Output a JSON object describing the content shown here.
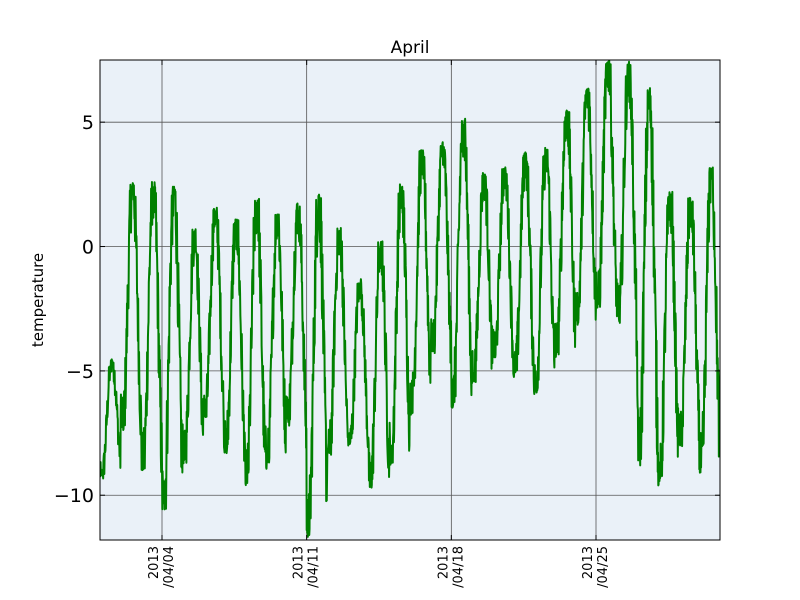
{
  "chart_data": {
    "type": "line",
    "title": "April",
    "xlabel": "",
    "ylabel": "temperature",
    "x_range": [
      "2013-04-01",
      "2013-05-01"
    ],
    "ylim": [
      -11.8,
      7.5
    ],
    "y_ticks": [
      5,
      0,
      -5,
      -10
    ],
    "y_tick_labels": [
      "5",
      "0",
      "−5",
      "−10"
    ],
    "x_ticks": [
      {
        "date": "2013-04-04",
        "line1": "2013",
        "line2": "/04/04"
      },
      {
        "date": "2013-04-11",
        "line1": "2013",
        "line2": "/04/11"
      },
      {
        "date": "2013-04-18",
        "line1": "2013",
        "line2": "/04/18"
      },
      {
        "date": "2013-04-25",
        "line1": "2013",
        "line2": "/04/25"
      }
    ],
    "grid": true,
    "background": "#eaf1f8",
    "series": [
      {
        "color": "#008000",
        "daily": [
          {
            "date": "2013-04-01",
            "min": -9.5,
            "max": -4.5
          },
          {
            "date": "2013-04-02",
            "min": -7.5,
            "max": 2.6
          },
          {
            "date": "2013-04-03",
            "min": -9.0,
            "max": 2.7
          },
          {
            "date": "2013-04-04",
            "min": -10.7,
            "max": 2.5
          },
          {
            "date": "2013-04-05",
            "min": -8.8,
            "max": 0.7
          },
          {
            "date": "2013-04-06",
            "min": -7.0,
            "max": 1.6
          },
          {
            "date": "2013-04-07",
            "min": -8.3,
            "max": 1.2
          },
          {
            "date": "2013-04-08",
            "min": -9.8,
            "max": 2.0
          },
          {
            "date": "2013-04-09",
            "min": -9.0,
            "max": 1.3
          },
          {
            "date": "2013-04-10",
            "min": -7.0,
            "max": 1.8
          },
          {
            "date": "2013-04-11",
            "min": -11.8,
            "max": 2.2
          },
          {
            "date": "2013-04-12",
            "min": -8.5,
            "max": 0.8
          },
          {
            "date": "2013-04-13",
            "min": -8.0,
            "max": -1.3
          },
          {
            "date": "2013-04-14",
            "min": -9.8,
            "max": 0.3
          },
          {
            "date": "2013-04-15",
            "min": -8.9,
            "max": 2.6
          },
          {
            "date": "2013-04-16",
            "min": -6.8,
            "max": 3.9
          },
          {
            "date": "2013-04-17",
            "min": -4.2,
            "max": 4.2
          },
          {
            "date": "2013-04-18",
            "min": -6.5,
            "max": 5.2
          },
          {
            "date": "2013-04-19",
            "min": -5.5,
            "max": 3.0
          },
          {
            "date": "2013-04-20",
            "min": -4.5,
            "max": 3.2
          },
          {
            "date": "2013-04-21",
            "min": -5.3,
            "max": 3.8
          },
          {
            "date": "2013-04-22",
            "min": -6.0,
            "max": 4.0
          },
          {
            "date": "2013-04-23",
            "min": -4.5,
            "max": 5.6
          },
          {
            "date": "2013-04-24",
            "min": -3.2,
            "max": 6.4
          },
          {
            "date": "2013-04-25",
            "min": -2.5,
            "max": 7.5
          },
          {
            "date": "2013-04-26",
            "min": -3.0,
            "max": 7.5
          },
          {
            "date": "2013-04-27",
            "min": -8.8,
            "max": 6.5
          },
          {
            "date": "2013-04-28",
            "min": -9.7,
            "max": 2.2
          },
          {
            "date": "2013-04-29",
            "min": -8.0,
            "max": 2.0
          },
          {
            "date": "2013-04-30",
            "min": -9.2,
            "max": 3.2
          }
        ]
      }
    ]
  }
}
